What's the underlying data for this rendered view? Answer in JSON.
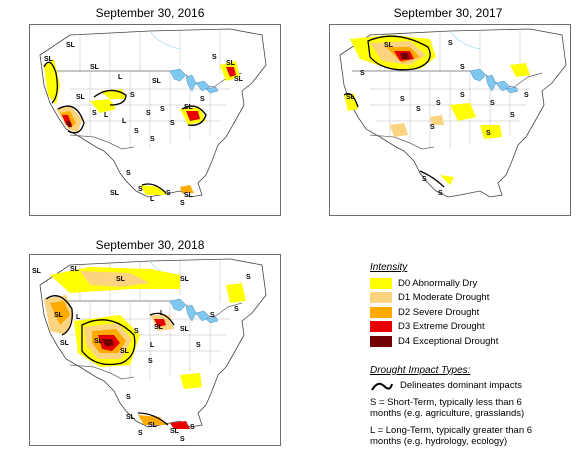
{
  "maps": [
    {
      "title": "September 30, 2016",
      "labels": [
        "SL",
        "SL",
        "SL",
        "SL",
        "S",
        "L",
        "S",
        "SL",
        "L",
        "L",
        "S",
        "S",
        "SL",
        "SL",
        "S",
        "SL",
        "S",
        "S",
        "S",
        "S",
        "S",
        "S",
        "SL",
        "S",
        "L",
        "SL",
        "S"
      ]
    },
    {
      "title": "September 30, 2017",
      "labels": [
        "SL",
        "S",
        "S",
        "S",
        "SL",
        "S",
        "S",
        "S",
        "S",
        "S",
        "S",
        "S",
        "S",
        "S",
        "S",
        "S"
      ]
    },
    {
      "title": "September 30, 2018",
      "labels": [
        "SL",
        "SL",
        "SL",
        "SL",
        "S",
        "SL",
        "L",
        "SL",
        "SL",
        "SL",
        "S",
        "SL",
        "L",
        "S",
        "SL",
        "S",
        "S",
        "S",
        "L",
        "S",
        "SL",
        "SL",
        "SL",
        "S",
        "S",
        "S"
      ]
    }
  ],
  "legend": {
    "heading": "Intensity",
    "items": [
      {
        "label": "D0 Abnormally Dry",
        "color": "#ffff00"
      },
      {
        "label": "D1 Moderate Drought",
        "color": "#fcd37f"
      },
      {
        "label": "D2 Severe Drought",
        "color": "#ffaa00"
      },
      {
        "label": "D3 Extreme Drought",
        "color": "#e60000"
      },
      {
        "label": "D4 Exceptional Drought",
        "color": "#730000"
      }
    ],
    "impact_heading": "Drought Impact Types:",
    "impact_line_label": "Delineates dominant impacts",
    "short_term": "S = Short-Term, typically less than 6 months (e.g. agriculture, grasslands)",
    "long_term": "L = Long-Term, typically greater than 6 months (e.g. hydrology, ecology)"
  },
  "colors": {
    "lake": "#7ec8f0",
    "border": "#444444",
    "state_line": "#aaaaaa",
    "frame": "#6e6e6e"
  }
}
